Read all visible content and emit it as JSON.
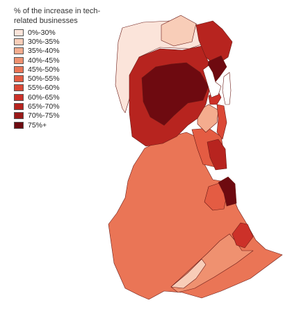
{
  "legend": {
    "title_line1": "% of the increase in tech-",
    "title_line2": "related businesses",
    "items": [
      {
        "label": "0%-30%",
        "color": "#fbe4da"
      },
      {
        "label": "30%-35%",
        "color": "#f8cdb8"
      },
      {
        "label": "35%-40%",
        "color": "#f4ac8e"
      },
      {
        "label": "40%-45%",
        "color": "#ef9170"
      },
      {
        "label": "45%-50%",
        "color": "#ea7556"
      },
      {
        "label": "50%-55%",
        "color": "#e45c43"
      },
      {
        "label": "55%-60%",
        "color": "#db4836"
      },
      {
        "label": "60%-65%",
        "color": "#cc3129"
      },
      {
        "label": "65%-70%",
        "color": "#b7241f"
      },
      {
        "label": "70%-75%",
        "color": "#9a1918"
      },
      {
        "label": "75%+",
        "color": "#6e0a10"
      }
    ]
  },
  "water_color": "#ffffff",
  "border_color": "#6b1a16"
}
